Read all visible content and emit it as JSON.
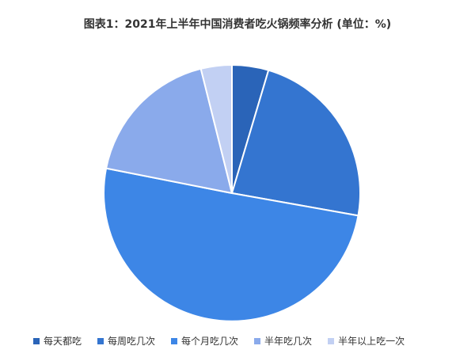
{
  "chart_data": {
    "type": "pie",
    "title": "图表1：2021年上半年中国消费者吃火锅频率分析 (单位：%)",
    "categories": [
      "每天都吃",
      "每周吃几次",
      "每个月吃几次",
      "半年吃几次",
      "半年以上吃一次"
    ],
    "values": [
      4.6,
      23.2,
      50.3,
      18.0,
      3.9
    ],
    "colors": [
      "#2a64b8",
      "#3475d0",
      "#3d86e6",
      "#8aaaeb",
      "#c2d0f3"
    ],
    "legend_position": "bottom"
  }
}
